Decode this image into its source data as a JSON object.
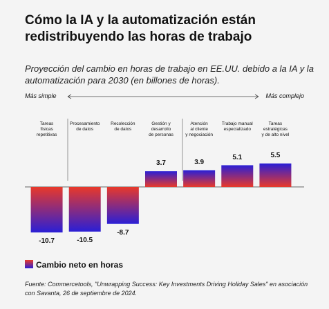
{
  "chart_data": {
    "type": "bar",
    "title": "Cómo la IA y la automatización están redistribuyendo las horas de trabajo",
    "subtitle": "Proyección del cambio en horas de trabajo en EE.UU. debido a la IA y la automatización para 2030 (en billones de horas).",
    "axis_left_label": "Más simple",
    "axis_right_label": "Más complejo",
    "categories": [
      "Tareas\nfísicas\nrepetitivas",
      "Procesamiento\nde datos",
      "Recolección\nde datos",
      "Gestión y\ndesarrollo\nde personas",
      "Atención\nal cliente\ny negociación",
      "Trabajo manual\nespecializado",
      "Tareas\nestratégicas\ny de alto nivel"
    ],
    "series": [
      {
        "name": "Cambio neto en horas",
        "colors": [
          "#e8392a",
          "#2a1fd6"
        ],
        "values": [
          -10.7,
          -10.5,
          -8.7,
          3.7,
          3.9,
          5.1,
          5.5
        ]
      }
    ],
    "source": "Fuente: Commercetools, \"Unwrapping Success: Key Investments Driving Holiday Sales\" en asociación con Savanta, 26 de septiembre de 2024."
  }
}
